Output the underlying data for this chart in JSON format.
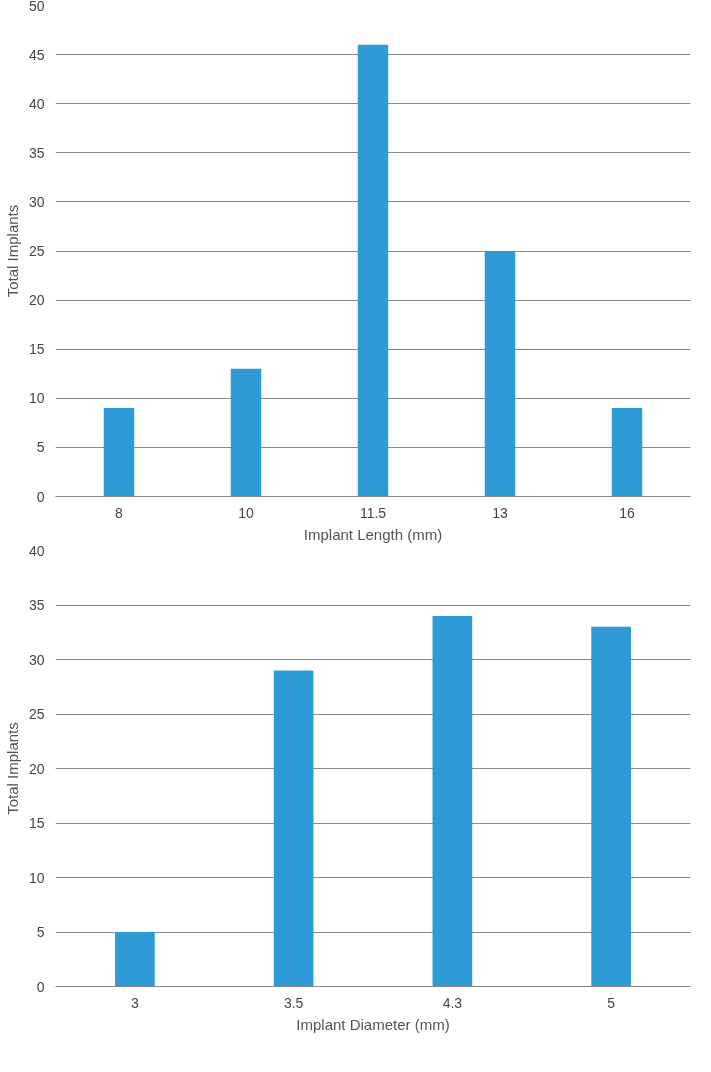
{
  "chart_data": [
    {
      "type": "bar",
      "categories": [
        "8",
        "10",
        "11.5",
        "13",
        "16"
      ],
      "values": [
        9,
        13,
        46,
        25,
        9
      ],
      "color": "#2e9ad6",
      "xlabel": "Implant Length (mm)",
      "ylabel": "Total Implants",
      "ylim": [
        0,
        50
      ],
      "yticks": [
        0,
        5,
        10,
        15,
        20,
        25,
        30,
        35,
        40,
        45,
        50
      ],
      "grid": "y"
    },
    {
      "type": "bar",
      "categories": [
        "3",
        "3.5",
        "4.3",
        "5"
      ],
      "values": [
        5,
        29,
        34,
        33
      ],
      "color": "#2e9ad6",
      "xlabel": "Implant Diameter (mm)",
      "ylabel": "Total Implants",
      "ylim": [
        0,
        40
      ],
      "yticks": [
        0,
        5,
        10,
        15,
        20,
        25,
        30,
        35,
        40
      ],
      "grid": "y"
    }
  ]
}
